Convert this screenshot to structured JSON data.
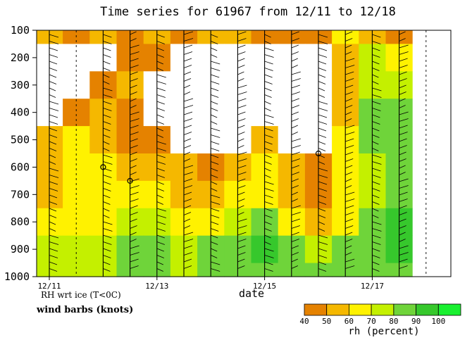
{
  "chart_data": {
    "type": "heatmap",
    "title": "Time series for 61967 from 12/11 to 12/18",
    "xlabel": "date",
    "ylabel": "",
    "x_ticks": [
      "12/11",
      "12/13",
      "12/15",
      "12/17"
    ],
    "y_ticks": [
      100,
      200,
      300,
      400,
      500,
      600,
      700,
      800,
      900,
      1000
    ],
    "ylim": [
      100,
      1000
    ],
    "y_inverted": true,
    "x_times": [
      "12/11 00Z",
      "12/11 12Z",
      "12/12 00Z",
      "12/12 12Z",
      "12/13 00Z",
      "12/13 12Z",
      "12/14 00Z",
      "12/14 12Z",
      "12/15 00Z",
      "12/15 12Z",
      "12/16 00Z",
      "12/16 12Z",
      "12/17 00Z",
      "12/17 12Z",
      "12/18 00Z"
    ],
    "missing_soundings": [
      "12/11 12Z",
      "12/18 00Z"
    ],
    "levels": [
      100,
      200,
      300,
      400,
      500,
      600,
      700,
      800,
      900,
      1000
    ],
    "rh": [
      [
        55,
        45,
        50,
        45,
        55,
        45,
        50,
        55,
        40,
        45,
        45,
        60,
        55,
        45,
        50
      ],
      [
        20,
        30,
        35,
        45,
        40,
        35,
        20,
        20,
        25,
        20,
        35,
        50,
        70,
        65,
        60
      ],
      [
        20,
        25,
        40,
        50,
        20,
        20,
        20,
        20,
        20,
        20,
        35,
        55,
        75,
        75,
        70
      ],
      [
        30,
        40,
        50,
        40,
        20,
        20,
        20,
        20,
        20,
        20,
        30,
        55,
        80,
        85,
        75
      ],
      [
        55,
        60,
        55,
        45,
        40,
        30,
        20,
        30,
        50,
        30,
        30,
        60,
        80,
        80,
        80
      ],
      [
        55,
        60,
        62,
        55,
        55,
        50,
        40,
        55,
        60,
        50,
        40,
        60,
        75,
        80,
        85
      ],
      [
        58,
        60,
        65,
        60,
        60,
        55,
        55,
        60,
        60,
        55,
        45,
        60,
        75,
        85,
        85
      ],
      [
        62,
        62,
        65,
        70,
        75,
        65,
        65,
        70,
        80,
        65,
        55,
        65,
        80,
        90,
        90
      ],
      [
        70,
        72,
        75,
        80,
        80,
        70,
        80,
        88,
        92,
        85,
        75,
        80,
        85,
        90,
        95
      ],
      [
        75,
        78,
        75,
        80,
        80,
        75,
        80,
        85,
        88,
        85,
        80,
        85,
        85,
        88,
        95
      ]
    ],
    "bins": [
      40,
      50,
      60,
      70,
      80,
      90,
      100
    ],
    "bin_colors": [
      "#e58200",
      "#f5b800",
      "#fff200",
      "#c4f000",
      "#6fd43a",
      "#36c82c",
      "#19f030"
    ],
    "legend_label": "rh (percent)",
    "legend_placement": "bottom-right",
    "notes": [
      "RH wrt ice (T<0C)",
      "wind barbs (knots)"
    ],
    "circle_markers": [
      {
        "time": "12/12 00Z",
        "level": 600
      },
      {
        "time": "12/12 12Z",
        "level": 650
      },
      {
        "time": "12/16 00Z",
        "level": 550
      }
    ]
  }
}
